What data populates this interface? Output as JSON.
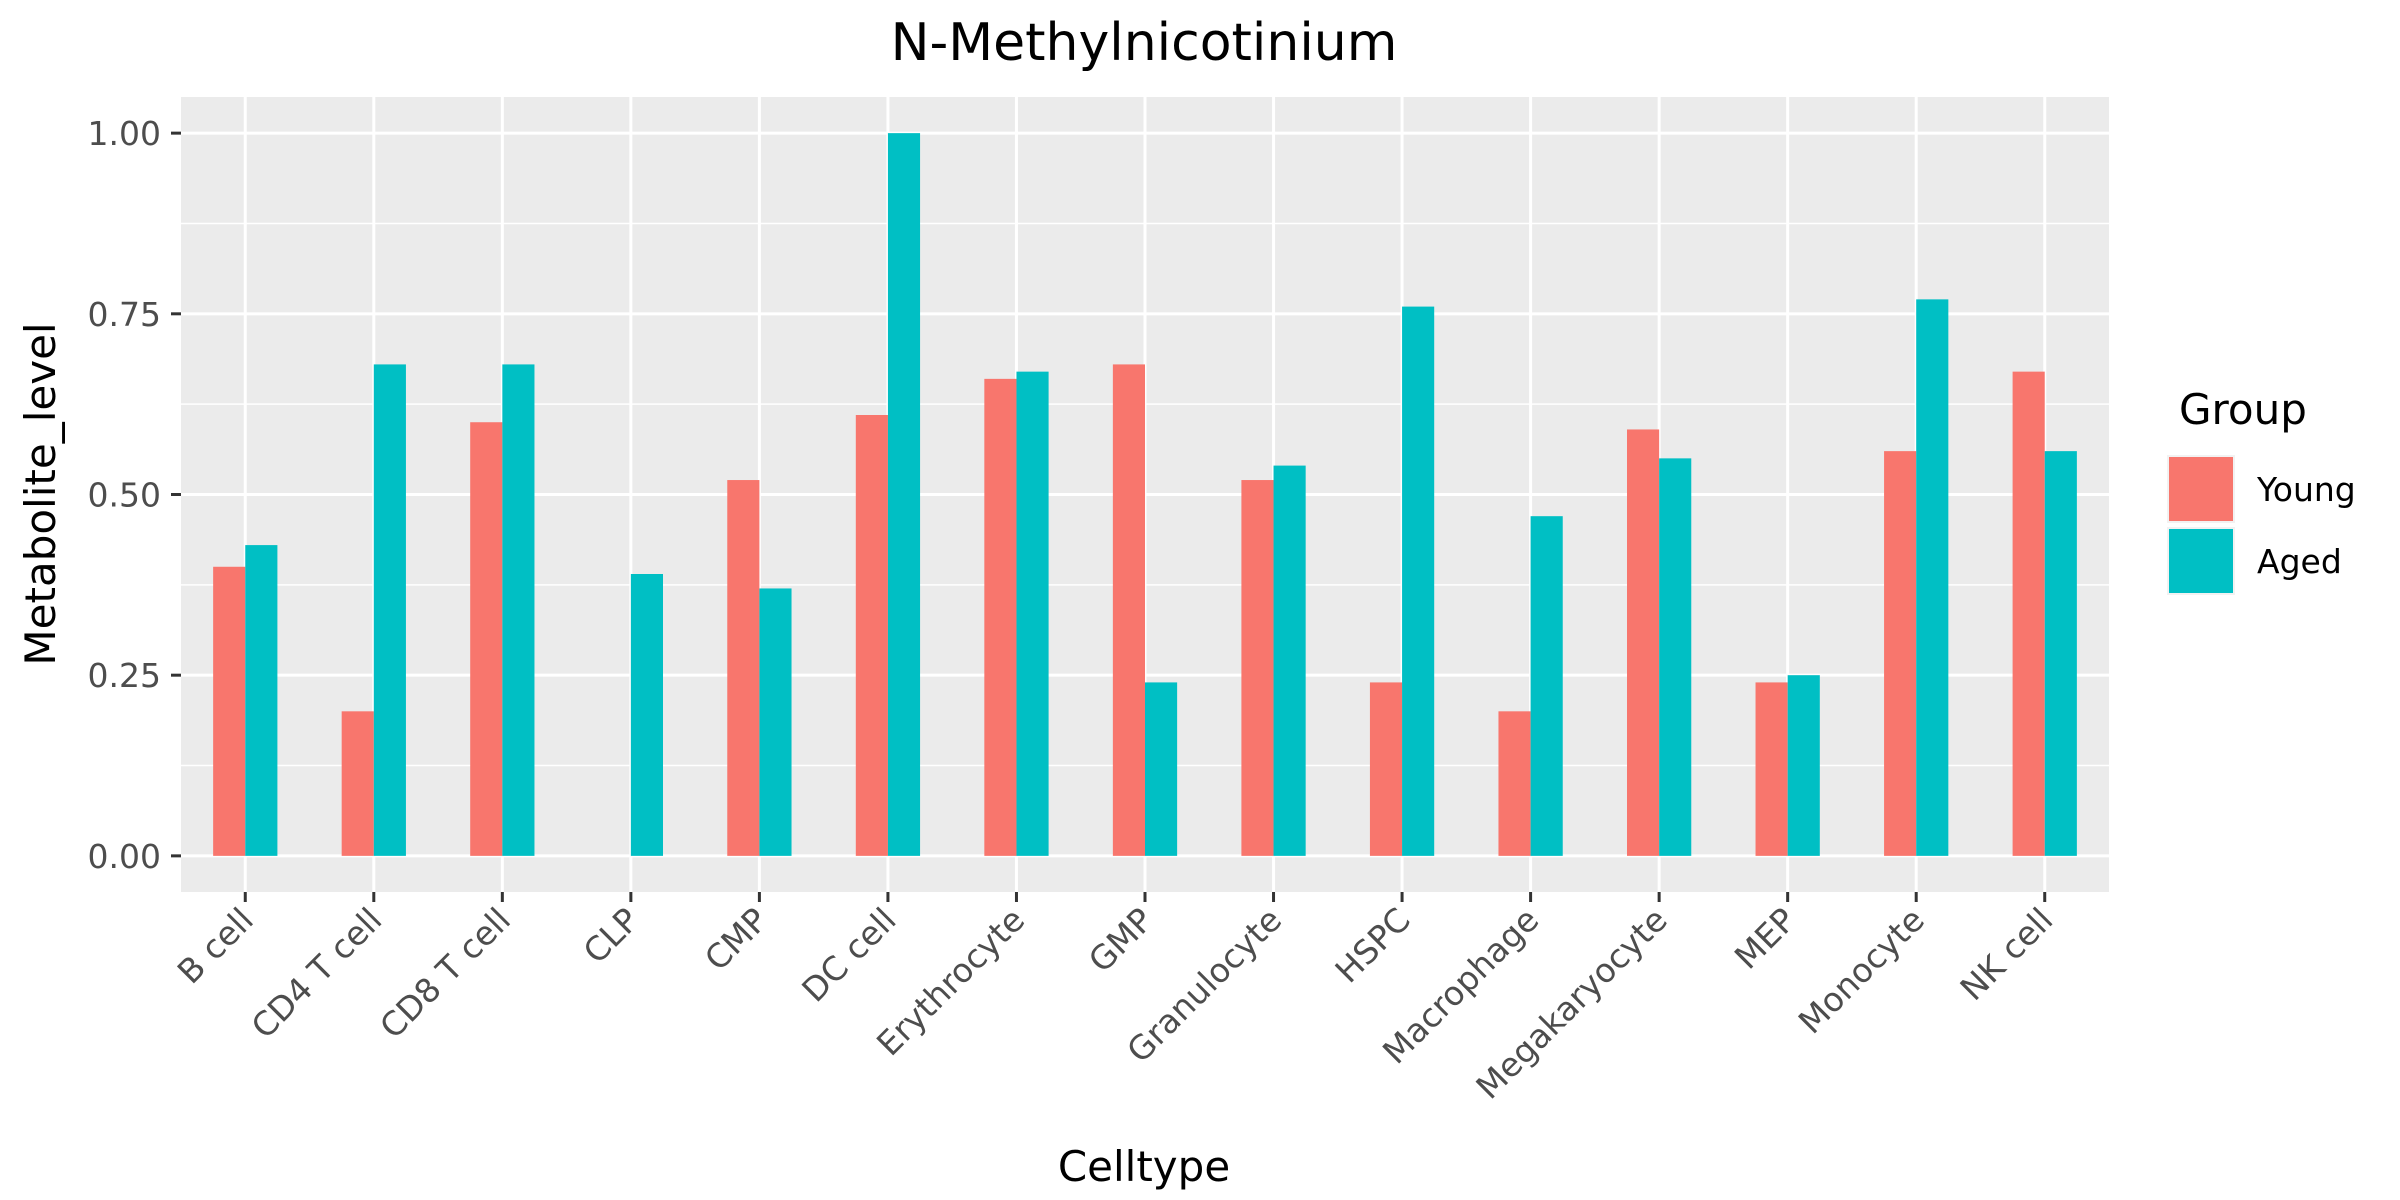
{
  "chart_data": {
    "type": "bar",
    "title": "N-Methylnicotinium",
    "xlabel": "Celltype",
    "ylabel": "Metabolite_level",
    "categories": [
      "B cell",
      "CD4 T cell",
      "CD8 T cell",
      "CLP",
      "CMP",
      "DC cell",
      "Erythrocyte",
      "GMP",
      "Granulocyte",
      "HSPC",
      "Macrophage",
      "Megakaryocyte",
      "MEP",
      "Monocyte",
      "NK cell"
    ],
    "series": [
      {
        "name": "Young",
        "color": "#F8766D",
        "values": [
          0.4,
          0.2,
          0.6,
          0.0,
          0.52,
          0.61,
          0.66,
          0.68,
          0.52,
          0.24,
          0.2,
          0.59,
          0.24,
          0.56,
          0.67
        ]
      },
      {
        "name": "Aged",
        "color": "#00BFC4",
        "values": [
          0.43,
          0.68,
          0.68,
          0.39,
          0.37,
          1.0,
          0.67,
          0.24,
          0.54,
          0.76,
          0.47,
          0.55,
          0.25,
          0.77,
          0.56
        ]
      }
    ],
    "ylim": [
      -0.05,
      1.05
    ],
    "yticks": [
      "0.00",
      "0.25",
      "0.50",
      "0.75",
      "1.00"
    ],
    "grid": true,
    "legend": {
      "title": "Group",
      "position": "right"
    },
    "panel_background": "#EBEBEB"
  }
}
